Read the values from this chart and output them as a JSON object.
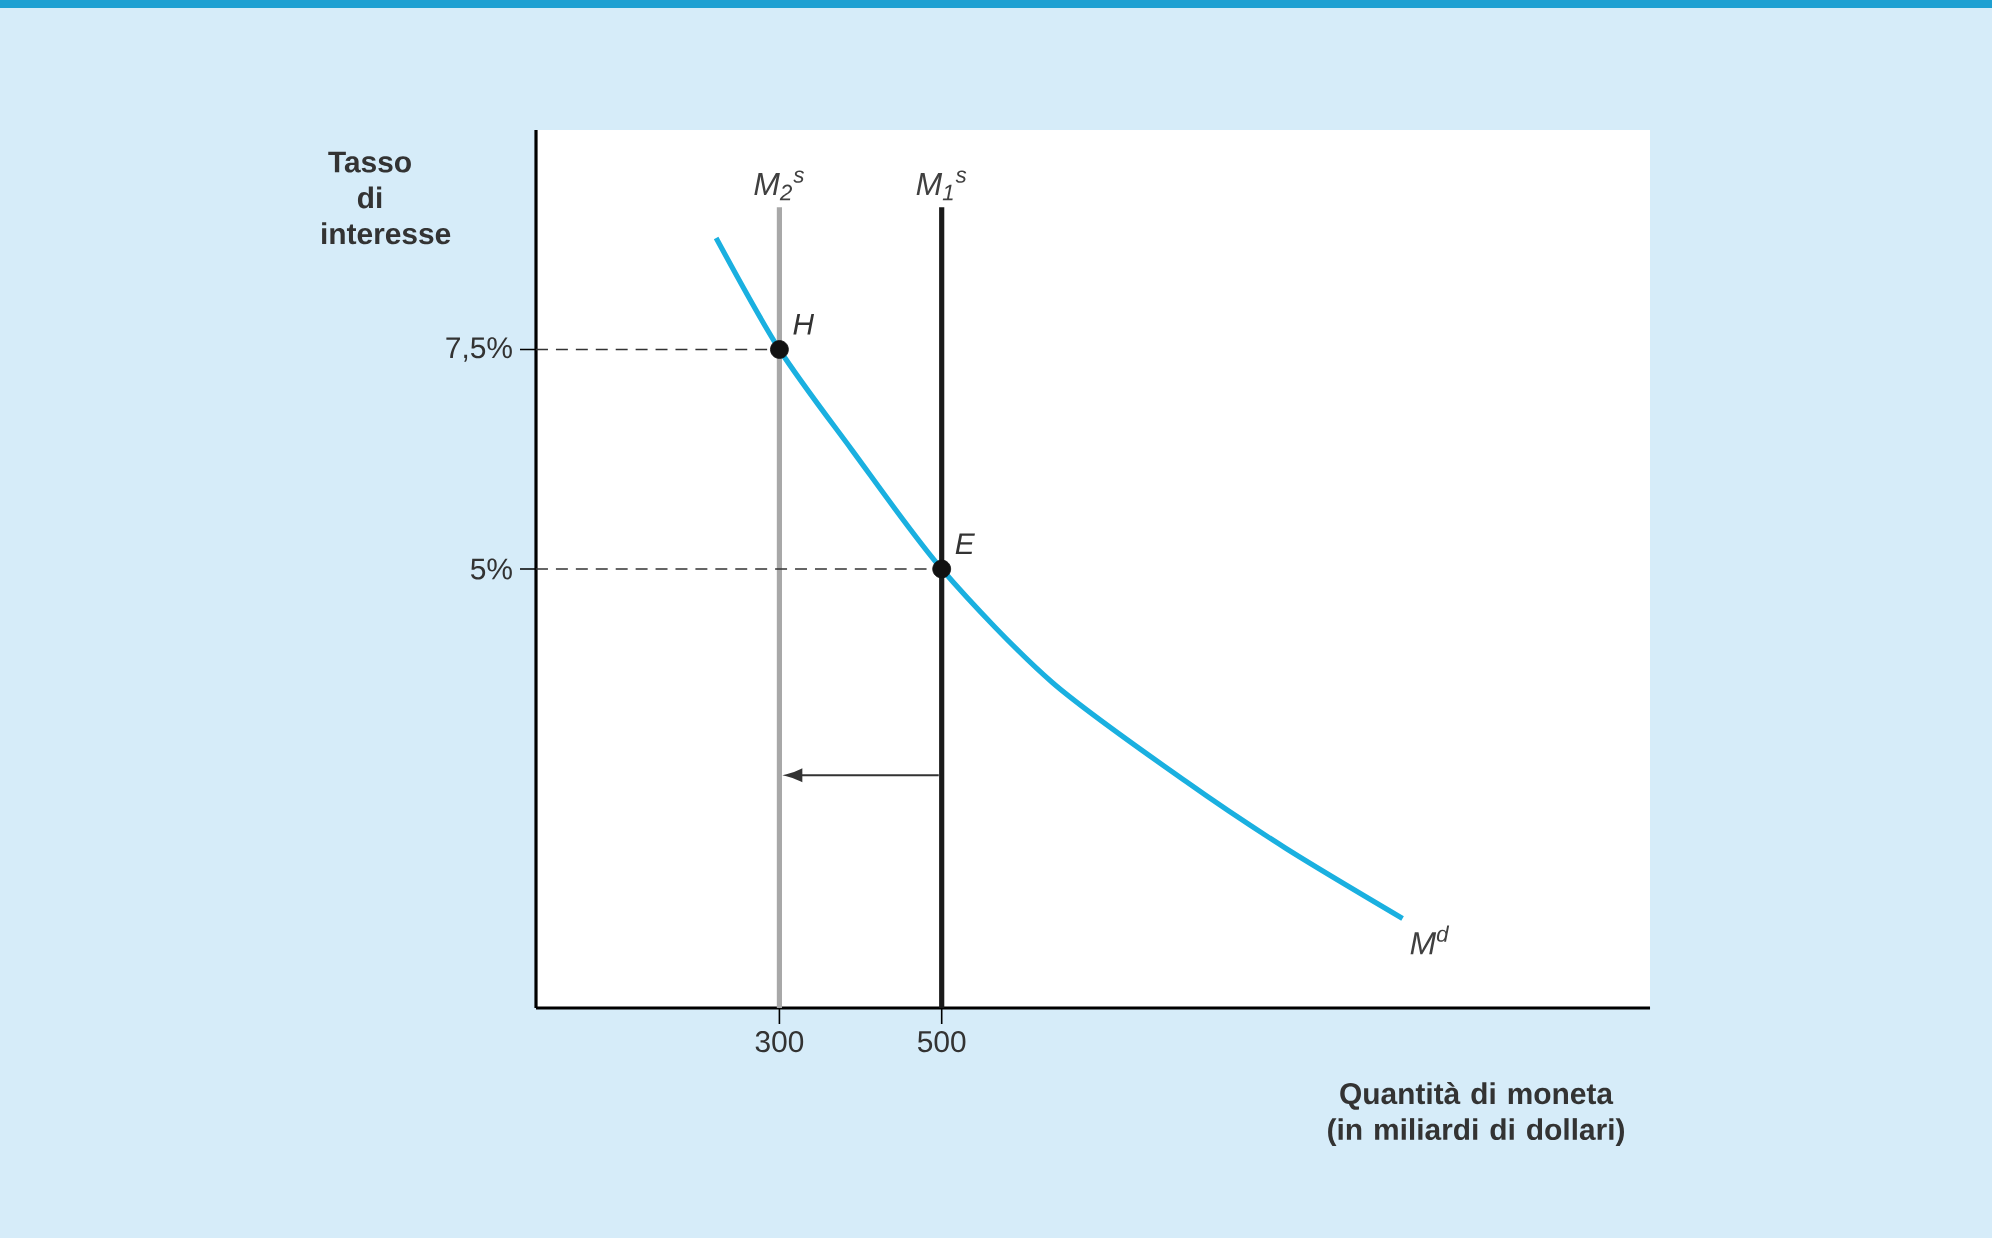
{
  "chart_data": {
    "type": "line",
    "xlabel": "Quantità di moneta (in miliardi di dollari)",
    "ylabel": "Tasso di interesse",
    "xlim": [
      0,
      1373
    ],
    "ylim": [
      0,
      10
    ],
    "xticks": [
      300,
      500
    ],
    "yticks": [
      {
        "value": 5,
        "label": "5%"
      },
      {
        "value": 7.5,
        "label": "7,5%"
      }
    ],
    "grid": false,
    "legend": false,
    "series": [
      {
        "name": "M$^{d}$",
        "color": "#1ab0e0",
        "x": [
          222,
          300,
          389,
          500,
          636,
          801,
          924,
          1068
        ],
        "values": [
          8.77,
          7.5,
          6.36,
          5,
          3.71,
          2.58,
          1.82,
          1.02
        ]
      },
      {
        "name": "M$_{2}$$^{s}$",
        "color": "#a8a8a8",
        "x": [
          300,
          300
        ],
        "values": [
          0,
          9.12
        ]
      },
      {
        "name": "M$_{1}$$^{s}$",
        "color": "#1a1a1a",
        "x": [
          500,
          500
        ],
        "values": [
          0,
          9.12
        ]
      },
      {
        "color": "#333333",
        "line_style": "dashed",
        "x": [
          0,
          300
        ],
        "values": [
          7.5,
          7.5
        ]
      },
      {
        "color": "#333333",
        "line_style": "dashed",
        "x": [
          0,
          500
        ],
        "values": [
          5,
          5
        ]
      },
      {
        "type": "scatter",
        "color": "#111111",
        "marker": "circle",
        "x": [
          300,
          500
        ],
        "values": [
          7.5,
          5
        ]
      }
    ],
    "annotations": [
      {
        "text": "H",
        "x": 300,
        "y": 7.5
      },
      {
        "text": "E",
        "x": 500,
        "y": 5
      }
    ]
  }
}
